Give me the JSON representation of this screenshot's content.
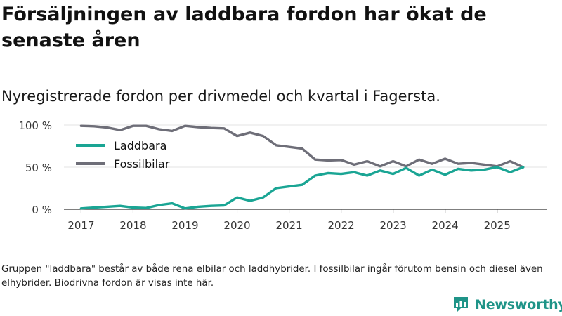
{
  "title": "Försäljningen av laddbara fordon har ökat de senaste åren",
  "subtitle": "Nyregistrerade fordon per drivmedel och kvartal i Fagersta.",
  "footnote": "Gruppen \"laddbara\" består av både rena elbilar och laddhybrider. I fossilbilar ingår förutom bensin och diesel även elhybrider. Biodrivna fordon är visas inte här.",
  "brand": {
    "name": "Newsworthy",
    "color": "#1f9488",
    "icon": "bar-chart-logo-icon"
  },
  "chart_data": {
    "type": "line",
    "x_start": 2017.0,
    "x_step": 0.25,
    "xlim": [
      2016.67,
      2025.95
    ],
    "ylim": [
      0,
      100
    ],
    "x_ticks": [
      {
        "value": 2017,
        "label": "2017"
      },
      {
        "value": 2018,
        "label": "2018"
      },
      {
        "value": 2019,
        "label": "2019"
      },
      {
        "value": 2020,
        "label": "2020"
      },
      {
        "value": 2021,
        "label": "2021"
      },
      {
        "value": 2022,
        "label": "2022"
      },
      {
        "value": 2023,
        "label": "2023"
      },
      {
        "value": 2024,
        "label": "2024"
      },
      {
        "value": 2025,
        "label": "2025"
      }
    ],
    "y_ticks": [
      {
        "value": 0,
        "label": "0 %"
      },
      {
        "value": 50,
        "label": "50 %"
      },
      {
        "value": 100,
        "label": "100 %"
      }
    ],
    "grid": true,
    "legend_position": "top-left",
    "series": [
      {
        "name": "Laddbara",
        "color": "#1aa594",
        "values": [
          1,
          2,
          3,
          4,
          2,
          1.5,
          5,
          7,
          1,
          3,
          4,
          4.5,
          14,
          10,
          14,
          25,
          27,
          29,
          40,
          43,
          42,
          44,
          40,
          46,
          42,
          49,
          40,
          47,
          41,
          48,
          46,
          47,
          50,
          44,
          50
        ]
      },
      {
        "name": "Fossilbilar",
        "color": "#6e6e78",
        "values": [
          99,
          98.5,
          97,
          94,
          99,
          99,
          95,
          93,
          99,
          97.5,
          96.5,
          96,
          87,
          91,
          87,
          76,
          74,
          72,
          59,
          58,
          58.5,
          53,
          57,
          51,
          57,
          51,
          59,
          54,
          60,
          54,
          55,
          53,
          51,
          57,
          50
        ]
      }
    ]
  }
}
